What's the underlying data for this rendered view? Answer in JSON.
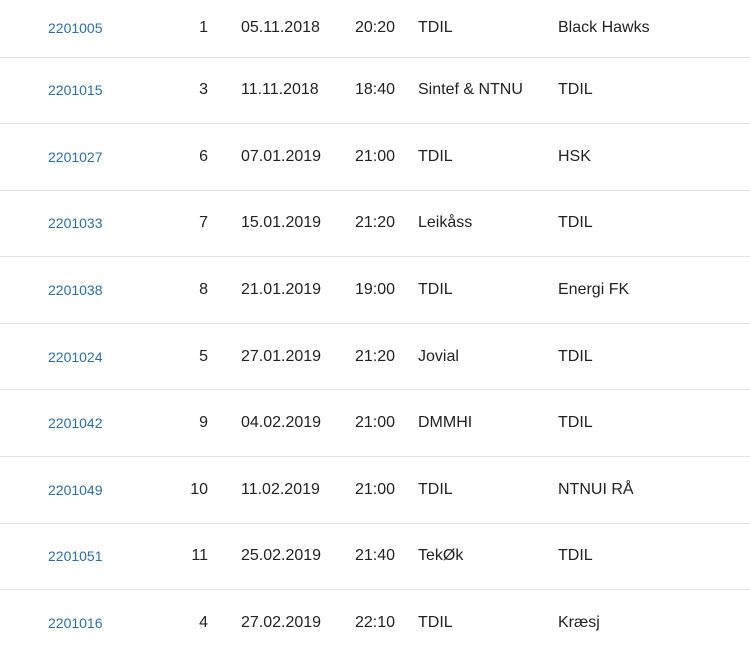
{
  "matches": [
    {
      "id": "2201005",
      "round": "1",
      "date": "05.11.2018",
      "time": "20:20",
      "home": "TDIL",
      "away": "Black Hawks"
    },
    {
      "id": "2201015",
      "round": "3",
      "date": "11.11.2018",
      "time": "18:40",
      "home": "Sintef & NTNU",
      "away": "TDIL"
    },
    {
      "id": "2201027",
      "round": "6",
      "date": "07.01.2019",
      "time": "21:00",
      "home": "TDIL",
      "away": "HSK"
    },
    {
      "id": "2201033",
      "round": "7",
      "date": "15.01.2019",
      "time": "21:20",
      "home": "Leikåss",
      "away": "TDIL"
    },
    {
      "id": "2201038",
      "round": "8",
      "date": "21.01.2019",
      "time": "19:00",
      "home": "TDIL",
      "away": "Energi FK"
    },
    {
      "id": "2201024",
      "round": "5",
      "date": "27.01.2019",
      "time": "21:20",
      "home": "Jovial",
      "away": "TDIL"
    },
    {
      "id": "2201042",
      "round": "9",
      "date": "04.02.2019",
      "time": "21:00",
      "home": "DMMHI",
      "away": "TDIL"
    },
    {
      "id": "2201049",
      "round": "10",
      "date": "11.02.2019",
      "time": "21:00",
      "home": "TDIL",
      "away": "NTNUI RÅ"
    },
    {
      "id": "2201051",
      "round": "11",
      "date": "25.02.2019",
      "time": "21:40",
      "home": "TekØk",
      "away": "TDIL"
    },
    {
      "id": "2201016",
      "round": "4",
      "date": "27.02.2019",
      "time": "22:10",
      "home": "TDIL",
      "away": "Kræsj"
    }
  ],
  "colors": {
    "link": "#2e6da4",
    "text": "#222222",
    "divider": "#e3e3e3"
  }
}
